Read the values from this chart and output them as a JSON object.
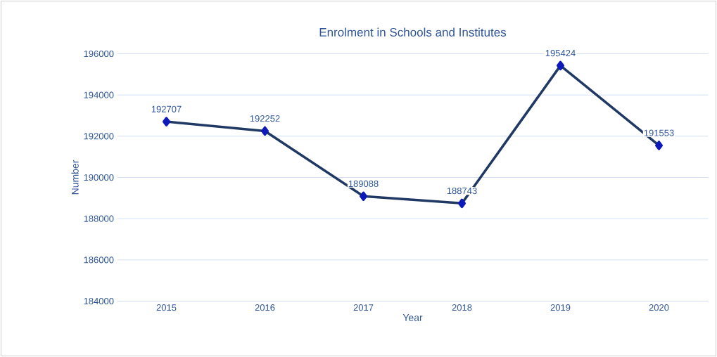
{
  "chart_data": {
    "type": "line",
    "title": "Enrolment in Schools and Institutes",
    "xlabel": "Year",
    "ylabel": "Number",
    "categories": [
      "2015",
      "2016",
      "2017",
      "2018",
      "2019",
      "2020"
    ],
    "values": [
      192707,
      192252,
      189088,
      188743,
      195424,
      191553
    ],
    "color": "#1f3864",
    "marker": "diamond",
    "data_labels": true,
    "grid": "y",
    "ylim": [
      184000,
      196000
    ],
    "yticks": [
      184000,
      186000,
      188000,
      190000,
      192000,
      194000,
      196000
    ]
  }
}
